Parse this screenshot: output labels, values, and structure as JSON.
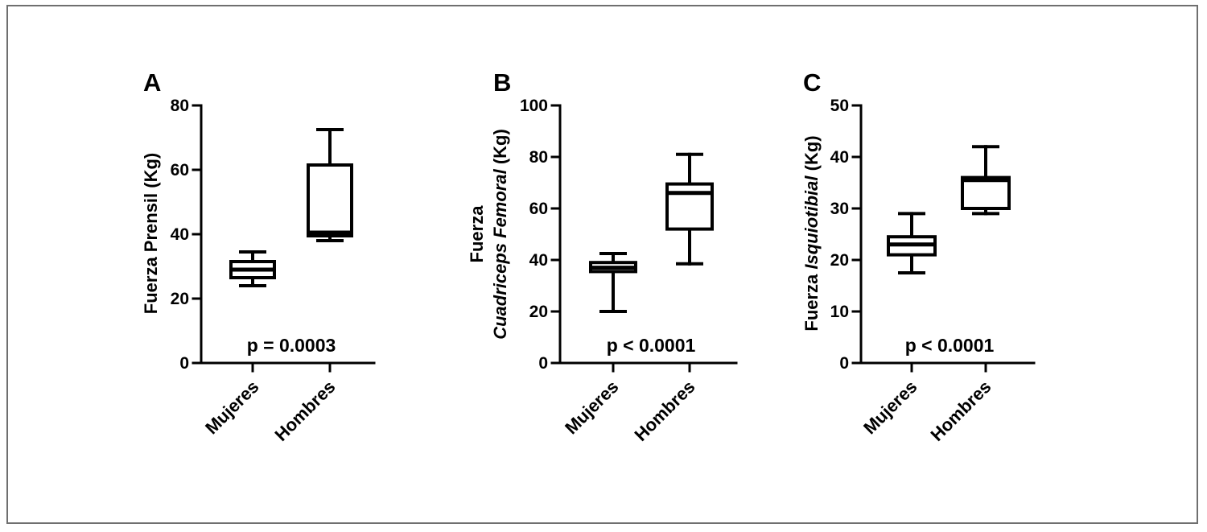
{
  "chart_data": [
    {
      "type": "box",
      "panel": "A",
      "ylabel": "Fuerza Prensil (Kg)",
      "ylim": [
        0,
        80
      ],
      "yticks": [
        0,
        20,
        40,
        60,
        80
      ],
      "categories": [
        "Mujeres",
        "Hombres"
      ],
      "boxes": [
        {
          "min": 24,
          "q1": 26.5,
          "median": 29,
          "q3": 31.5,
          "max": 34.5
        },
        {
          "min": 38,
          "q1": 39.5,
          "median": 40.5,
          "q3": 61.5,
          "max": 72.5
        }
      ],
      "annotation": "p = 0.0003"
    },
    {
      "type": "box",
      "panel": "B",
      "ylabel_line1": "Fuerza",
      "ylabel_line2_italic": "Cuadriceps Femoral",
      "ylabel_line2_rest": " (Kg)",
      "ylim": [
        0,
        100
      ],
      "yticks": [
        0,
        20,
        40,
        60,
        80,
        100
      ],
      "categories": [
        "Mujeres",
        "Hombres"
      ],
      "boxes": [
        {
          "min": 20,
          "q1": 35.5,
          "median": 37,
          "q3": 39,
          "max": 42.5
        },
        {
          "min": 38.5,
          "q1": 52,
          "median": 66,
          "q3": 69.5,
          "max": 81
        }
      ],
      "annotation": "p < 0.0001"
    },
    {
      "type": "box",
      "panel": "C",
      "ylabel_plain": "Fuerza ",
      "ylabel_italic": "Isquiotibial",
      "ylabel_rest": " (Kg)",
      "ylim": [
        0,
        50
      ],
      "yticks": [
        0,
        10,
        20,
        30,
        40,
        50
      ],
      "categories": [
        "Mujeres",
        "Hombres"
      ],
      "boxes": [
        {
          "min": 17.5,
          "q1": 21,
          "median": 23,
          "q3": 24.5,
          "max": 29
        },
        {
          "min": 29,
          "q1": 30,
          "median": 35.5,
          "q3": 36,
          "max": 42
        }
      ],
      "annotation": "p < 0.0001"
    }
  ]
}
